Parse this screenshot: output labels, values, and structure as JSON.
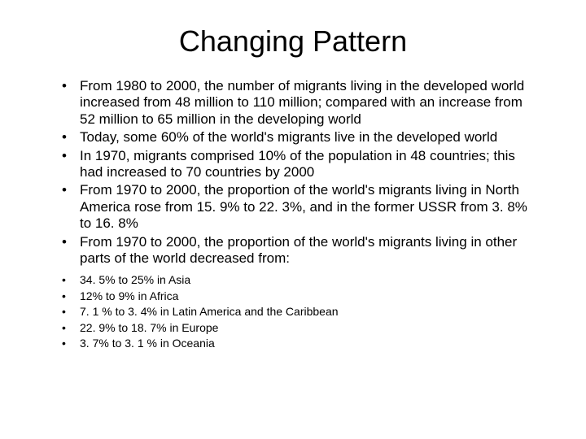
{
  "title": "Changing Pattern",
  "mainBullets": [
    "From 1980 to 2000, the number of migrants living in the developed world increased from 48 million to 110 million; compared with an increase from 52 million to 65 million in the developing world",
    "Today, some 60% of the world's migrants live in the developed world",
    "In 1970, migrants comprised 10% of the population in 48 countries; this had increased to 70 countries by 2000",
    "From 1970 to 2000, the proportion of the world's migrants living in North America rose from 15. 9% to 22. 3%, and in the former USSR from 3. 8% to 16. 8%",
    "From 1970 to 2000, the proportion of the world's migrants living in other parts of the world decreased from:"
  ],
  "subBullets": [
    "34. 5% to 25% in Asia",
    "12% to 9% in Africa",
    "7. 1 % to 3. 4% in Latin America and the Caribbean",
    "22. 9% to 18. 7% in Europe",
    "3. 7% to 3. 1 % in Oceania"
  ],
  "style": {
    "background_color": "#ffffff",
    "text_color": "#000000",
    "title_fontsize": 36,
    "main_fontsize": 17,
    "sub_fontsize": 14,
    "font_family": "Arial"
  }
}
